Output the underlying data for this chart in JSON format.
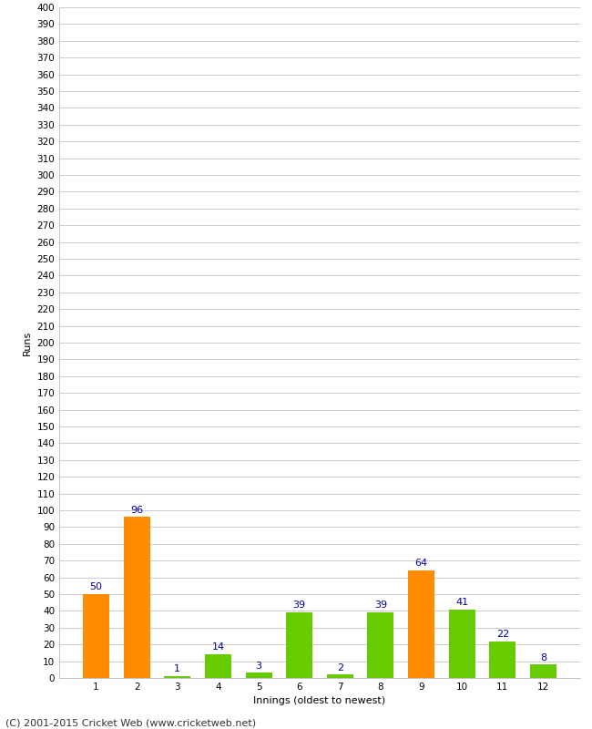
{
  "xlabel": "Innings (oldest to newest)",
  "ylabel": "Runs",
  "categories": [
    1,
    2,
    3,
    4,
    5,
    6,
    7,
    8,
    9,
    10,
    11,
    12
  ],
  "values": [
    50,
    96,
    1,
    14,
    3,
    39,
    2,
    39,
    64,
    41,
    22,
    8
  ],
  "colors": [
    "#FF8C00",
    "#FF8C00",
    "#66CC00",
    "#66CC00",
    "#66CC00",
    "#66CC00",
    "#66CC00",
    "#66CC00",
    "#FF8C00",
    "#66CC00",
    "#66CC00",
    "#66CC00"
  ],
  "ylim": [
    0,
    400
  ],
  "ytick_step": 10,
  "background_color": "#ffffff",
  "grid_color": "#cccccc",
  "label_color": "#0000AA",
  "footer": "(C) 2001-2015 Cricket Web (www.cricketweb.net)",
  "label_fontsize": 8,
  "tick_fontsize": 7.5,
  "footer_fontsize": 8,
  "ylabel_fontsize": 8,
  "bar_width": 0.65
}
